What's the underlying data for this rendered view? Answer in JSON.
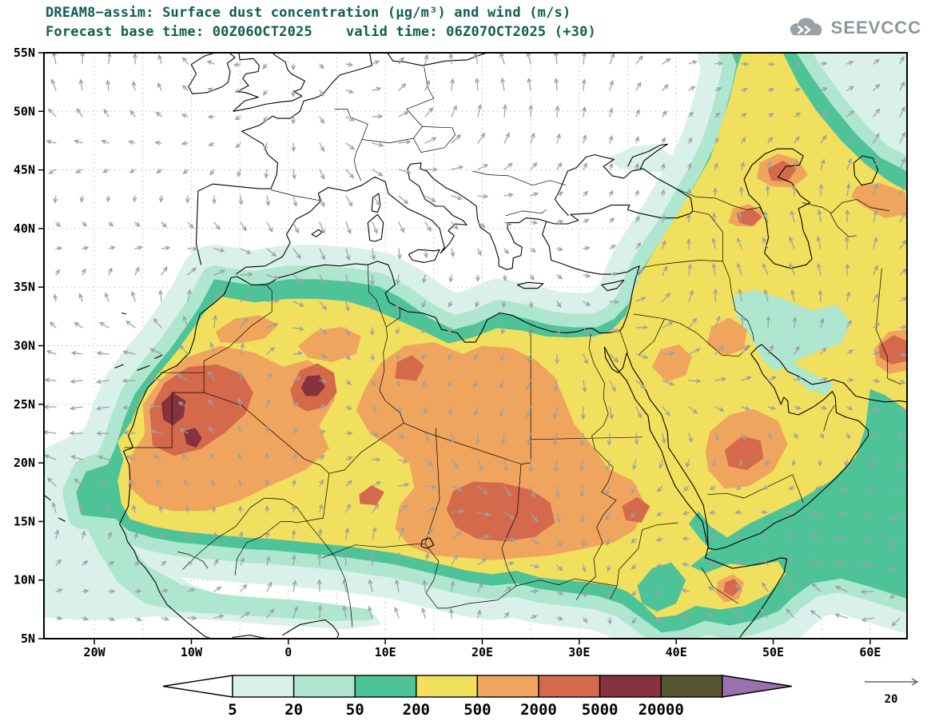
{
  "header": {
    "title": "DREAM8−assim: Surface dust concentration (µg/m³) and wind (m/s)",
    "forecast_label": "Forecast base time: 00Z06OCT2025",
    "valid_label": "valid time: 06Z07OCT2025 (+30)"
  },
  "logo": {
    "text": "SEEVCCC"
  },
  "chart_data": {
    "type": "heatmap",
    "title": "DREAM8−assim: Surface dust concentration (µg/m³) and wind (m/s)",
    "model": "DREAM8-assim",
    "variable": "Surface dust concentration",
    "units": "µg/m³",
    "wind_units": "m/s",
    "forecast_base_time": "00Z06OCT2025",
    "valid_time": "06Z07OCT2025",
    "forecast_step": "+30",
    "x_axis": {
      "ticks": [
        "20W",
        "10W",
        "0",
        "10E",
        "20E",
        "30E",
        "40E",
        "50E",
        "60E"
      ],
      "range_deg": [
        -25.2,
        63.8
      ],
      "grid_step_deg": 5
    },
    "y_axis": {
      "ticks": [
        "5N",
        "10N",
        "15N",
        "20N",
        "25N",
        "30N",
        "35N",
        "40N",
        "45N",
        "50N",
        "55N"
      ],
      "range_deg": [
        5,
        55
      ],
      "grid_step_deg": 5
    },
    "colorbar": {
      "levels": [
        5,
        20,
        50,
        200,
        500,
        2000,
        5000,
        20000
      ],
      "labels": [
        "5",
        "20",
        "50",
        "200",
        "500",
        "2000",
        "5000",
        "20000"
      ],
      "colors": {
        "below": "#ffffff",
        "bins": [
          "#d9f1ea",
          "#aee6cf",
          "#4fc398",
          "#f1df5e",
          "#f0a55e",
          "#d4694c",
          "#86333d",
          "#56562e"
        ],
        "above": "#9a70ae"
      }
    },
    "wind_reference": {
      "value": 20,
      "label": "20"
    },
    "field_description": [
      "Dust plume covering Sahara, Sahel, Arabian Peninsula, extending to Caspian region and NE corner of domain",
      "Maxima 5000-20000 µg/m³ over Mauritania / W Algeria and central Algeria",
      "2000-5000 µg/m³ cores over Mauritania-W Algeria, Chad-Sudan, central Saudi Arabia, NE Caspian, Somalia",
      "Grey wind vectors over whole domain; reference vector 20 m/s bottom right"
    ]
  },
  "style": {
    "title_color": "#0e5e50",
    "axis_color": "#000000",
    "wind_color": "#9aa1a6",
    "logo_color": "#8d969c"
  }
}
